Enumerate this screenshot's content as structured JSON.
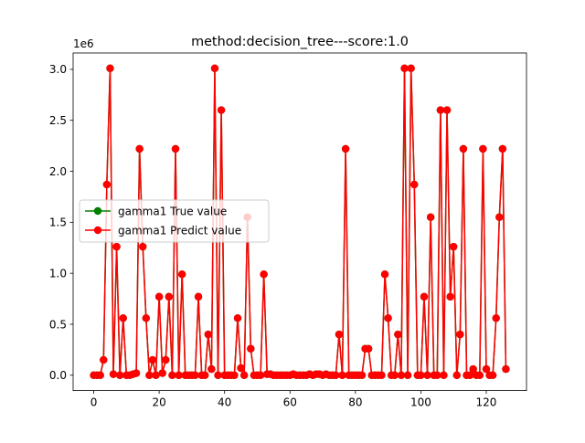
{
  "chart_data": {
    "type": "line",
    "title": "method:decision_tree---score:1.0",
    "xlabel": "",
    "ylabel": "",
    "y_offset_label": "1e6",
    "y_scale": 1000000,
    "xlim": [
      -6.3,
      132.3
    ],
    "ylim": [
      -0.1505,
      3.1605
    ],
    "x_ticks": [
      0,
      20,
      40,
      60,
      80,
      100,
      120
    ],
    "y_ticks": [
      0.0,
      0.5,
      1.0,
      1.5,
      2.0,
      2.5,
      3.0
    ],
    "y_tick_labels": [
      "0.0",
      "0.5",
      "1.0",
      "1.5",
      "2.0",
      "2.5",
      "3.0"
    ],
    "grid": false,
    "legend_position": "center-left",
    "series": [
      {
        "name": "gamma1 True value",
        "color": "#008000",
        "values": [
          0,
          0,
          0,
          0.15,
          1.87,
          3.01,
          0.01,
          1.26,
          0,
          0.56,
          0,
          0,
          0.01,
          0.02,
          2.22,
          1.26,
          0.56,
          0,
          0.15,
          0,
          0.77,
          0.02,
          0.15,
          0.77,
          0,
          2.22,
          0,
          0.99,
          0,
          0,
          0,
          0,
          0.77,
          0,
          0,
          0.4,
          0.06,
          3.01,
          0,
          2.6,
          0,
          0,
          0,
          0,
          0.56,
          0.07,
          0,
          1.55,
          0.26,
          0,
          0,
          0,
          0.99,
          0.01,
          0.01,
          0,
          0,
          0,
          0,
          0,
          0,
          0.01,
          0,
          0,
          0,
          0,
          0.01,
          0,
          0.01,
          0.01,
          0,
          0.01,
          0,
          0,
          0,
          0.4,
          0,
          2.22,
          0,
          0,
          0,
          0,
          0,
          0.26,
          0.26,
          0,
          0,
          0,
          0,
          0.99,
          0.56,
          0,
          0,
          0.4,
          0,
          3.01,
          0,
          3.01,
          1.87,
          0,
          0,
          0.77,
          0,
          1.55,
          0,
          0,
          2.6,
          0,
          2.6,
          0.77,
          1.26,
          0,
          0.4,
          2.22,
          0,
          0,
          0.06,
          0,
          0,
          2.22,
          0.06,
          0,
          0,
          0.56,
          1.55,
          2.22,
          0.06
        ]
      },
      {
        "name": "gamma1 Predict value",
        "color": "#ff0000",
        "values": [
          0,
          0,
          0,
          0.15,
          1.87,
          3.01,
          0.01,
          1.26,
          0,
          0.56,
          0,
          0,
          0.01,
          0.02,
          2.22,
          1.26,
          0.56,
          0,
          0.15,
          0,
          0.77,
          0.02,
          0.15,
          0.77,
          0,
          2.22,
          0,
          0.99,
          0,
          0,
          0,
          0,
          0.77,
          0,
          0,
          0.4,
          0.06,
          3.01,
          0,
          2.6,
          0,
          0,
          0,
          0,
          0.56,
          0.07,
          0,
          1.55,
          0.26,
          0,
          0,
          0,
          0.99,
          0.01,
          0.01,
          0,
          0,
          0,
          0,
          0,
          0,
          0.01,
          0,
          0,
          0,
          0,
          0.01,
          0,
          0.01,
          0.01,
          0,
          0.01,
          0,
          0,
          0,
          0.4,
          0,
          2.22,
          0,
          0,
          0,
          0,
          0,
          0.26,
          0.26,
          0,
          0,
          0,
          0,
          0.99,
          0.56,
          0,
          0,
          0.4,
          0,
          3.01,
          0,
          3.01,
          1.87,
          0,
          0,
          0.77,
          0,
          1.55,
          0,
          0,
          2.6,
          0,
          2.6,
          0.77,
          1.26,
          0,
          0.4,
          2.22,
          0,
          0,
          0.06,
          0,
          0,
          2.22,
          0.06,
          0,
          0,
          0.56,
          1.55,
          2.22,
          0.06
        ]
      }
    ]
  }
}
